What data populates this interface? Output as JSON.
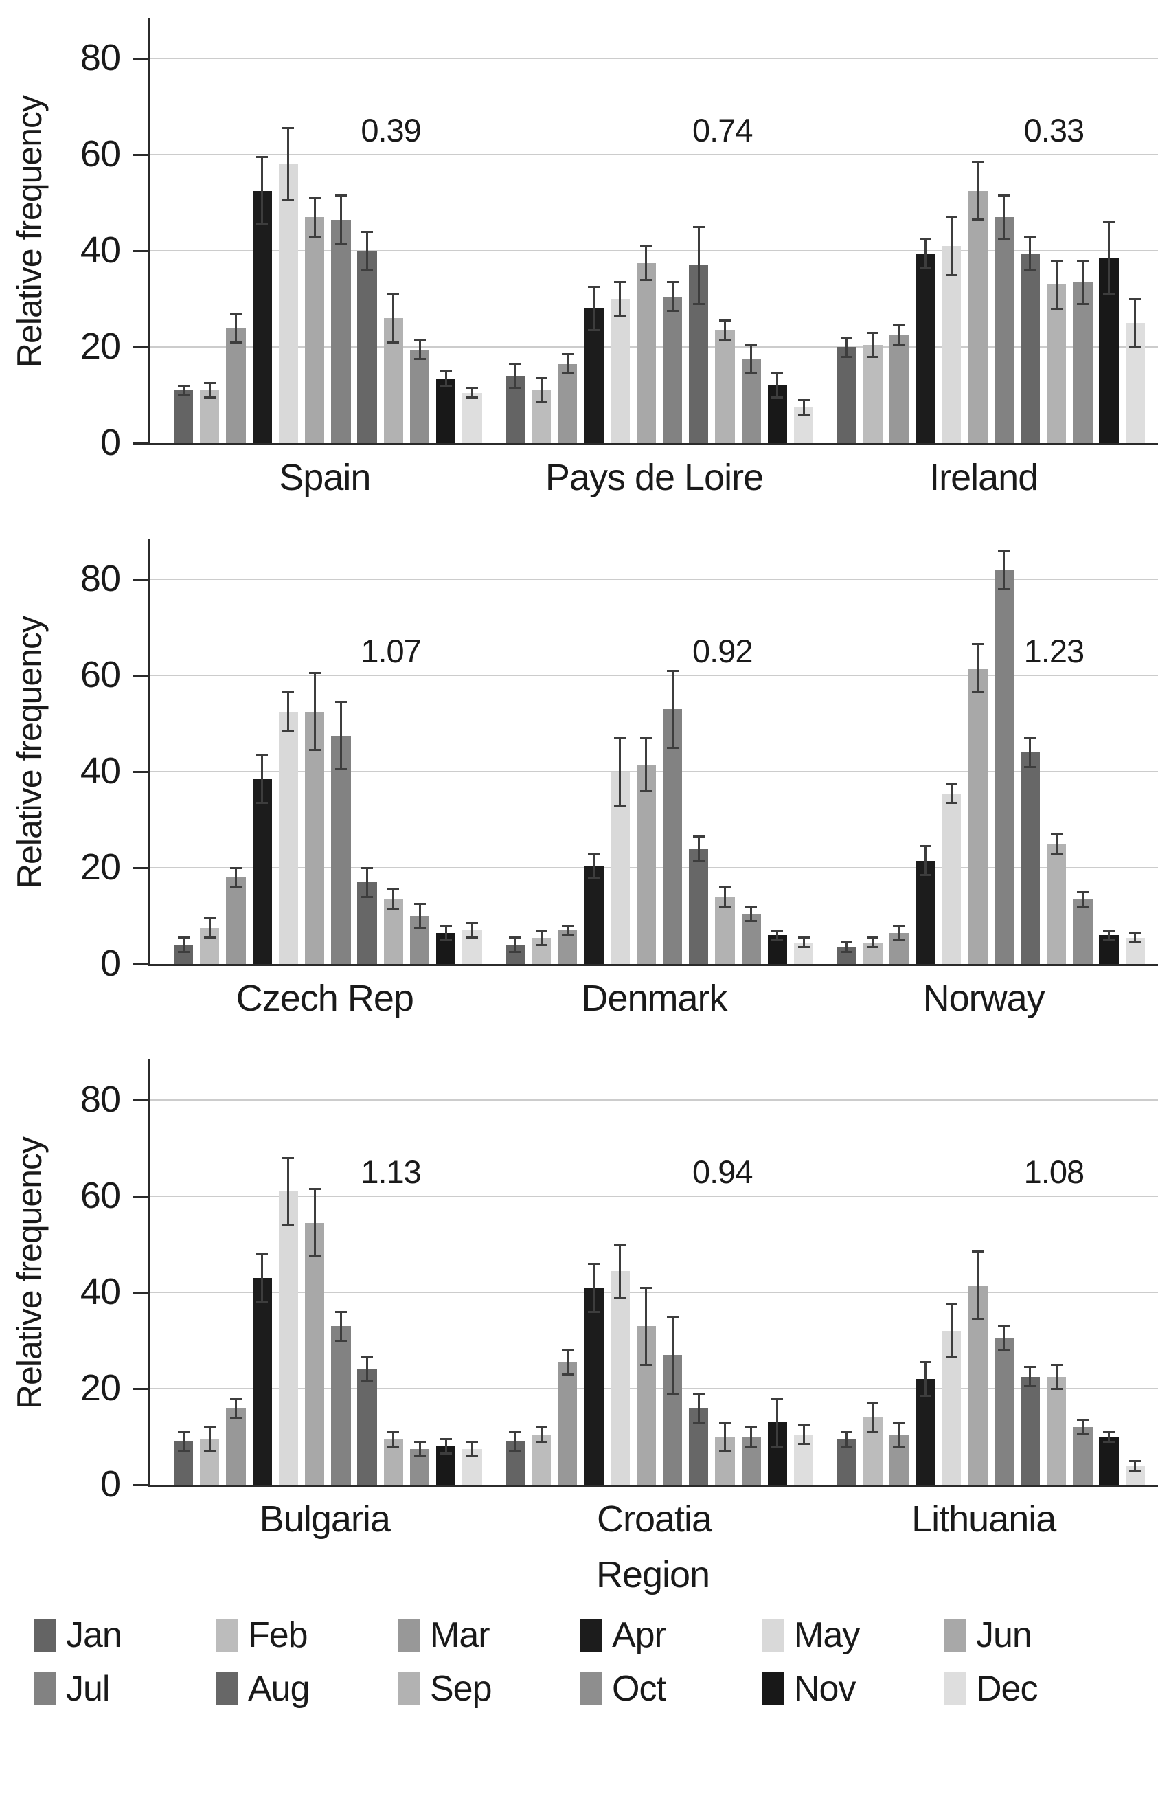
{
  "ylabel": "Relative frequency",
  "xaxis_title": "Region",
  "months": [
    "Jan",
    "Feb",
    "Mar",
    "Apr",
    "May",
    "Jun",
    "Jul",
    "Aug",
    "Sep",
    "Oct",
    "Nov",
    "Dec"
  ],
  "month_colors": [
    "#646464",
    "#bcbcbc",
    "#989898",
    "#1c1c1c",
    "#d9d9d9",
    "#a8a8a8",
    "#828282",
    "#676767",
    "#b2b2b2",
    "#8e8e8e",
    "#181818",
    "#dedede"
  ],
  "axis_color": "#2b2b2b",
  "grid_color": "#cccccc",
  "error_bar_color": "#3d3d3d",
  "legend": {
    "rows": [
      [
        "Jan",
        "Feb",
        "Mar",
        "Apr",
        "May",
        "Jun"
      ],
      [
        "Jul",
        "Aug",
        "Sep",
        "Oct",
        "Nov",
        "Dec"
      ]
    ]
  },
  "chart_data": {
    "type": "bar",
    "ylabel": "Relative frequency",
    "xlabel": "Region",
    "ylim": [
      0,
      88
    ],
    "yticks": [
      0,
      20,
      40,
      60,
      80
    ],
    "grid": true,
    "legend_position": "bottom",
    "categories_per_group": [
      "Jan",
      "Feb",
      "Mar",
      "Apr",
      "May",
      "Jun",
      "Jul",
      "Aug",
      "Sep",
      "Oct",
      "Nov",
      "Dec"
    ],
    "panels": [
      {
        "groups": [
          {
            "label": "Spain",
            "annotation": "0.39",
            "values": [
              11,
              11,
              24,
              52.5,
              58,
              47,
              46.5,
              40,
              26,
              19.5,
              13.5,
              10.5
            ],
            "errors": [
              1,
              1.5,
              3,
              7,
              7.5,
              4,
              5,
              4,
              5,
              2,
              1.5,
              1
            ]
          },
          {
            "label": "Pays de Loire",
            "annotation": "0.74",
            "values": [
              14,
              11,
              16.5,
              28,
              30,
              37.5,
              30.5,
              37,
              23.5,
              17.5,
              12,
              7.5
            ],
            "errors": [
              2.5,
              2.5,
              2,
              4.5,
              3.5,
              3.5,
              3,
              8,
              2,
              3,
              2.5,
              1.5
            ]
          },
          {
            "label": "Ireland",
            "annotation": "0.33",
            "values": [
              20,
              20.5,
              22.5,
              39.5,
              41,
              52.5,
              47,
              39.5,
              33,
              33.5,
              38.5,
              25
            ],
            "errors": [
              2,
              2.5,
              2,
              3,
              6,
              6,
              4.5,
              3.5,
              5,
              4.5,
              7.5,
              5
            ]
          }
        ]
      },
      {
        "groups": [
          {
            "label": "Czech Rep",
            "annotation": "1.07",
            "values": [
              4,
              7.5,
              18,
              38.5,
              52.5,
              52.5,
              47.5,
              17,
              13.5,
              10,
              6.5,
              7
            ],
            "errors": [
              1.5,
              2,
              2,
              5,
              4,
              8,
              7,
              3,
              2,
              2.5,
              1.5,
              1.5
            ]
          },
          {
            "label": "Denmark",
            "annotation": "0.92",
            "values": [
              4,
              5.5,
              7,
              20.5,
              40,
              41.5,
              53,
              24,
              14,
              10.5,
              6,
              4.5
            ],
            "errors": [
              1.5,
              1.5,
              1,
              2.5,
              7,
              5.5,
              8,
              2.5,
              2,
              1.5,
              1,
              1
            ]
          },
          {
            "label": "Norway",
            "annotation": "1.23",
            "values": [
              3.5,
              4.5,
              6.5,
              21.5,
              35.5,
              61.5,
              82,
              44,
              25,
              13.5,
              6,
              5.5
            ],
            "errors": [
              1,
              1,
              1.5,
              3,
              2,
              5,
              4,
              3,
              2,
              1.5,
              1,
              1
            ]
          }
        ]
      },
      {
        "groups": [
          {
            "label": "Bulgaria",
            "annotation": "1.13",
            "values": [
              9,
              9.5,
              16,
              43,
              61,
              54.5,
              33,
              24,
              9.5,
              7.5,
              8,
              7.5
            ],
            "errors": [
              2,
              2.5,
              2,
              5,
              7,
              7,
              3,
              2.5,
              1.5,
              1.5,
              1.5,
              1.5
            ]
          },
          {
            "label": "Croatia",
            "annotation": "0.94",
            "values": [
              9,
              10.5,
              25.5,
              41,
              44.5,
              33,
              27,
              16,
              10,
              10,
              13,
              10.5
            ],
            "errors": [
              2,
              1.5,
              2.5,
              5,
              5.5,
              8,
              8,
              3,
              3,
              2,
              5,
              2
            ]
          },
          {
            "label": "Lithuania",
            "annotation": "1.08",
            "values": [
              9.5,
              14,
              10.5,
              22,
              32,
              41.5,
              30.5,
              22.5,
              22.5,
              12,
              10,
              4
            ],
            "errors": [
              1.5,
              3,
              2.5,
              3.5,
              5.5,
              7,
              2.5,
              2,
              2.5,
              1.5,
              1,
              1
            ]
          }
        ]
      }
    ]
  }
}
